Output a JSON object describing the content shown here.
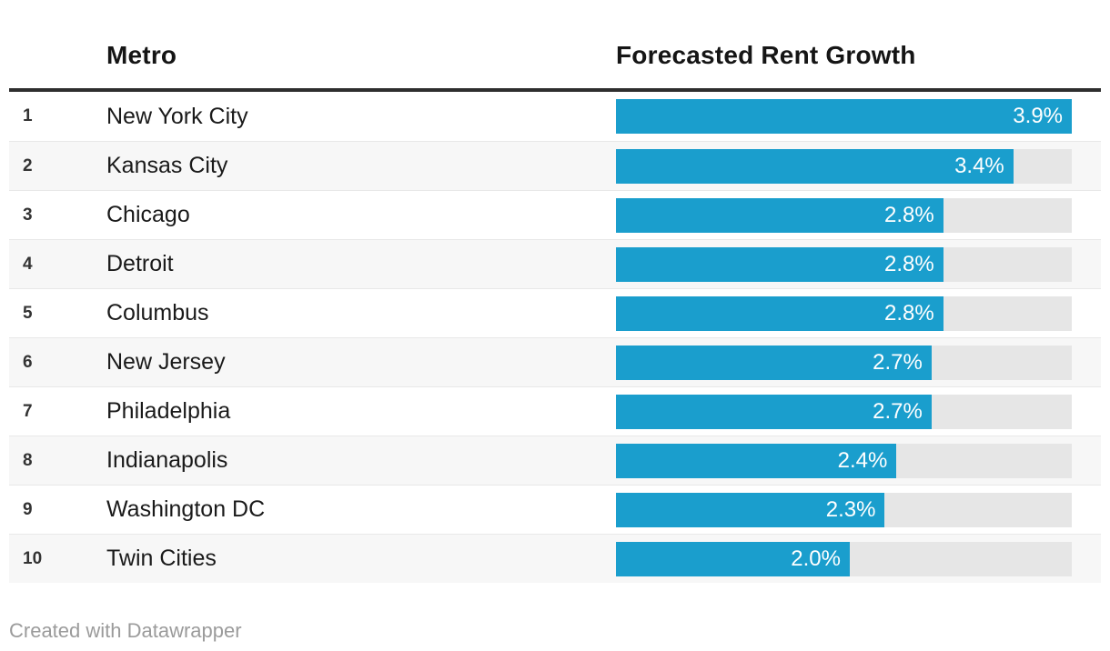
{
  "header": {
    "rank_label": "",
    "metro_label": "Metro",
    "value_label": "Forecasted Rent Growth"
  },
  "rows": [
    {
      "rank": "1",
      "metro": "New York City",
      "value": 3.9,
      "label": "3.9%"
    },
    {
      "rank": "2",
      "metro": "Kansas City",
      "value": 3.4,
      "label": "3.4%"
    },
    {
      "rank": "3",
      "metro": "Chicago",
      "value": 2.8,
      "label": "2.8%"
    },
    {
      "rank": "4",
      "metro": "Detroit",
      "value": 2.8,
      "label": "2.8%"
    },
    {
      "rank": "5",
      "metro": "Columbus",
      "value": 2.8,
      "label": "2.8%"
    },
    {
      "rank": "6",
      "metro": "New Jersey",
      "value": 2.7,
      "label": "2.7%"
    },
    {
      "rank": "7",
      "metro": "Philadelphia",
      "value": 2.7,
      "label": "2.7%"
    },
    {
      "rank": "8",
      "metro": "Indianapolis",
      "value": 2.4,
      "label": "2.4%"
    },
    {
      "rank": "9",
      "metro": "Washington DC",
      "value": 2.3,
      "label": "2.3%"
    },
    {
      "rank": "10",
      "metro": "Twin Cities",
      "value": 2.0,
      "label": "2.0%"
    }
  ],
  "footer": {
    "credit": "Created with Datawrapper"
  },
  "colors": {
    "bar": "#1a9ecd",
    "bar_track": "#e6e6e6",
    "row_stripe": "#f7f7f7",
    "row_border": "#e8e8e8",
    "header_rule": "#2e2e2e",
    "value_text": "#ffffff",
    "credit_text": "#9b9b9b"
  },
  "chart_data": {
    "type": "bar",
    "orientation": "horizontal",
    "title": "",
    "categories": [
      "New York City",
      "Kansas City",
      "Chicago",
      "Detroit",
      "Columbus",
      "New Jersey",
      "Philadelphia",
      "Indianapolis",
      "Washington DC",
      "Twin Cities"
    ],
    "values": [
      3.9,
      3.4,
      2.8,
      2.8,
      2.8,
      2.7,
      2.7,
      2.4,
      2.3,
      2.0
    ],
    "data_labels": [
      "3.9%",
      "3.4%",
      "2.8%",
      "2.8%",
      "2.8%",
      "2.7%",
      "2.7%",
      "2.4%",
      "2.3%",
      "2.0%"
    ],
    "ranks": [
      1,
      2,
      3,
      4,
      5,
      6,
      7,
      8,
      9,
      10
    ],
    "xlabel": "Forecasted Rent Growth",
    "ylabel": "Metro",
    "xlim": [
      0,
      3.9
    ],
    "grid": false,
    "legend": false,
    "bar_color": "#1a9ecd"
  }
}
